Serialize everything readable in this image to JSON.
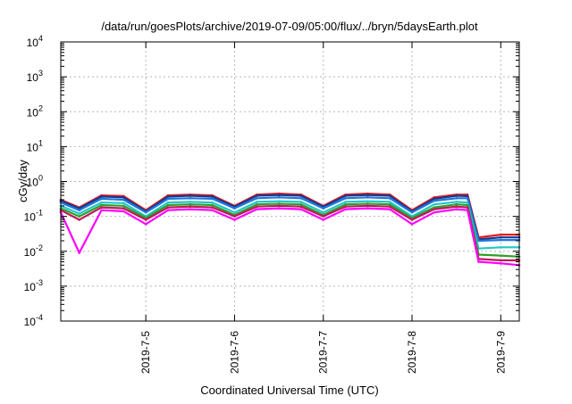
{
  "chart_data": {
    "type": "line",
    "title": "/data/run/goesPlots/archive/2019-07-09/05:00/flux/../bryn/5daysEarth.plot",
    "xlabel": "Coordinated Universal Time (UTC)",
    "ylabel": "cGy/day",
    "y_scale": "log",
    "ylim": [
      0.0001,
      10000
    ],
    "y_ticks": [
      {
        "base": "10",
        "exp": "-4",
        "value": 0.0001
      },
      {
        "base": "10",
        "exp": "-3",
        "value": 0.001
      },
      {
        "base": "10",
        "exp": "-2",
        "value": 0.01
      },
      {
        "base": "10",
        "exp": "-1",
        "value": 0.1
      },
      {
        "base": "10",
        "exp": "0",
        "value": 1
      },
      {
        "base": "10",
        "exp": "1",
        "value": 10
      },
      {
        "base": "10",
        "exp": "2",
        "value": 100
      },
      {
        "base": "10",
        "exp": "3",
        "value": 1000
      },
      {
        "base": "10",
        "exp": "4",
        "value": 10000
      }
    ],
    "xlim": [
      "2019-07-04 01:00",
      "2019-07-09 05:00"
    ],
    "x_ticks": [
      "2019-7-5",
      "2019-7-6",
      "2019-7-7",
      "2019-7-8",
      "2019-7-9"
    ],
    "grid": true,
    "legend": "none",
    "x": [
      "2019-07-04 01:00",
      "2019-07-04 06:00",
      "2019-07-04 12:00",
      "2019-07-04 18:00",
      "2019-07-05 00:00",
      "2019-07-05 06:00",
      "2019-07-05 12:00",
      "2019-07-05 18:00",
      "2019-07-06 00:00",
      "2019-07-06 06:00",
      "2019-07-06 12:00",
      "2019-07-06 18:00",
      "2019-07-07 00:00",
      "2019-07-07 06:00",
      "2019-07-07 12:00",
      "2019-07-07 18:00",
      "2019-07-08 00:00",
      "2019-07-08 06:00",
      "2019-07-08 12:00",
      "2019-07-08 15:00",
      "2019-07-08 18:00",
      "2019-07-09 00:00",
      "2019-07-09 05:00"
    ],
    "series": [
      {
        "color": "#e41a1c",
        "values": [
          0.3,
          0.18,
          0.4,
          0.38,
          0.15,
          0.4,
          0.42,
          0.4,
          0.2,
          0.42,
          0.45,
          0.42,
          0.2,
          0.42,
          0.45,
          0.42,
          0.15,
          0.35,
          0.42,
          0.42,
          0.025,
          0.03,
          0.03
        ]
      },
      {
        "color": "#1a3a8a",
        "values": [
          0.28,
          0.17,
          0.37,
          0.35,
          0.14,
          0.37,
          0.39,
          0.37,
          0.19,
          0.39,
          0.41,
          0.39,
          0.19,
          0.39,
          0.41,
          0.39,
          0.14,
          0.32,
          0.39,
          0.38,
          0.022,
          0.025,
          0.025
        ]
      },
      {
        "color": "#1f77e0",
        "values": [
          0.25,
          0.15,
          0.32,
          0.3,
          0.13,
          0.32,
          0.33,
          0.32,
          0.17,
          0.33,
          0.35,
          0.33,
          0.17,
          0.33,
          0.35,
          0.33,
          0.13,
          0.28,
          0.33,
          0.33,
          0.02,
          0.021,
          0.021
        ]
      },
      {
        "color": "#22c7c7",
        "values": [
          0.2,
          0.12,
          0.25,
          0.24,
          0.1,
          0.25,
          0.26,
          0.25,
          0.13,
          0.26,
          0.27,
          0.26,
          0.13,
          0.26,
          0.27,
          0.26,
          0.1,
          0.22,
          0.26,
          0.25,
          0.012,
          0.013,
          0.013
        ]
      },
      {
        "color": "#2ca02c",
        "values": [
          0.17,
          0.1,
          0.21,
          0.2,
          0.09,
          0.21,
          0.22,
          0.21,
          0.11,
          0.22,
          0.23,
          0.22,
          0.11,
          0.22,
          0.23,
          0.22,
          0.09,
          0.18,
          0.22,
          0.21,
          0.008,
          0.0075,
          0.007
        ]
      },
      {
        "color": "#c2185b",
        "values": [
          0.15,
          0.08,
          0.18,
          0.17,
          0.08,
          0.18,
          0.19,
          0.18,
          0.1,
          0.19,
          0.2,
          0.19,
          0.1,
          0.19,
          0.2,
          0.19,
          0.08,
          0.16,
          0.19,
          0.18,
          0.006,
          0.0055,
          0.0055
        ]
      },
      {
        "color": "#ff00ff",
        "values": [
          0.13,
          0.009,
          0.15,
          0.14,
          0.06,
          0.15,
          0.16,
          0.15,
          0.08,
          0.16,
          0.17,
          0.16,
          0.08,
          0.16,
          0.17,
          0.16,
          0.06,
          0.13,
          0.16,
          0.15,
          0.005,
          0.0045,
          0.004
        ]
      }
    ]
  }
}
